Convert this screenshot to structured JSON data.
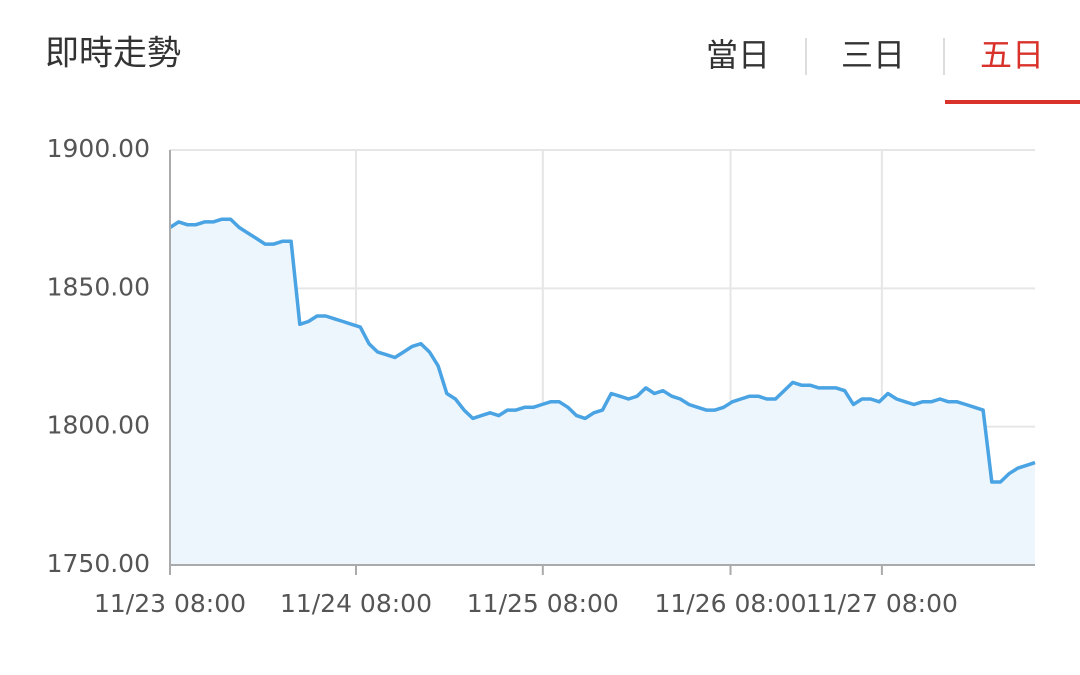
{
  "header": {
    "title": "即時走勢",
    "tabs": [
      {
        "label": "當日",
        "active": false
      },
      {
        "label": "三日",
        "active": false
      },
      {
        "label": "五日",
        "active": true
      }
    ],
    "active_color": "#d9322b"
  },
  "chart_data": {
    "type": "area",
    "x": [
      0,
      1,
      2,
      3,
      4,
      5,
      6,
      7,
      8,
      9,
      10,
      11,
      12,
      13,
      14,
      15,
      16,
      17,
      18,
      19,
      20,
      21,
      22,
      23,
      24,
      25,
      26,
      27,
      28,
      29,
      30,
      31,
      32,
      33,
      34,
      35,
      36,
      37,
      38,
      39,
      40,
      41,
      42,
      43,
      44,
      45,
      46,
      47,
      48,
      49,
      50,
      51,
      52,
      53,
      54,
      55,
      56,
      57,
      58,
      59,
      60,
      61,
      62,
      63,
      64,
      65,
      66,
      67,
      68,
      69,
      70,
      71,
      72,
      73,
      74,
      75,
      76,
      77,
      78,
      79,
      80,
      81,
      82,
      83,
      84,
      85,
      86,
      87,
      88,
      89,
      90,
      91,
      92,
      93,
      94,
      95,
      96,
      97,
      98,
      99,
      100
    ],
    "values": [
      1872,
      1874,
      1873,
      1873,
      1874,
      1874,
      1875,
      1875,
      1872,
      1870,
      1868,
      1866,
      1866,
      1867,
      1867,
      1837,
      1838,
      1840,
      1840,
      1839,
      1838,
      1837,
      1836,
      1830,
      1827,
      1826,
      1825,
      1827,
      1829,
      1830,
      1827,
      1822,
      1812,
      1810,
      1806,
      1803,
      1804,
      1805,
      1804,
      1806,
      1806,
      1807,
      1807,
      1808,
      1809,
      1809,
      1807,
      1804,
      1803,
      1805,
      1806,
      1812,
      1811,
      1810,
      1811,
      1814,
      1812,
      1813,
      1811,
      1810,
      1808,
      1807,
      1806,
      1806,
      1807,
      1809,
      1810,
      1811,
      1811,
      1810,
      1810,
      1813,
      1816,
      1815,
      1815,
      1814,
      1814,
      1814,
      1813,
      1808,
      1810,
      1810,
      1809,
      1812,
      1810,
      1809,
      1808,
      1809,
      1809,
      1810,
      1809,
      1809,
      1808,
      1807,
      1806,
      1780,
      1780,
      1783,
      1785,
      1786,
      1787
    ],
    "color": "#4aa3e3",
    "fill": "#eef6fd",
    "xlim": [
      0,
      100
    ],
    "xticks": [
      {
        "value": 0,
        "label": "11/23 08:00"
      },
      {
        "value": 21.5,
        "label": "11/24 08:00"
      },
      {
        "value": 43.1,
        "label": "11/25 08:00"
      },
      {
        "value": 64.8,
        "label": "11/26 08:00"
      },
      {
        "value": 82.3,
        "label": "11/27 08:00"
      }
    ],
    "ylim": [
      1750,
      1900
    ],
    "yticks": [
      {
        "value": 1750,
        "label": "1750.00"
      },
      {
        "value": 1800,
        "label": "1800.00"
      },
      {
        "value": 1850,
        "label": "1850.00"
      },
      {
        "value": 1900,
        "label": "1900.00"
      }
    ],
    "grid": true
  }
}
